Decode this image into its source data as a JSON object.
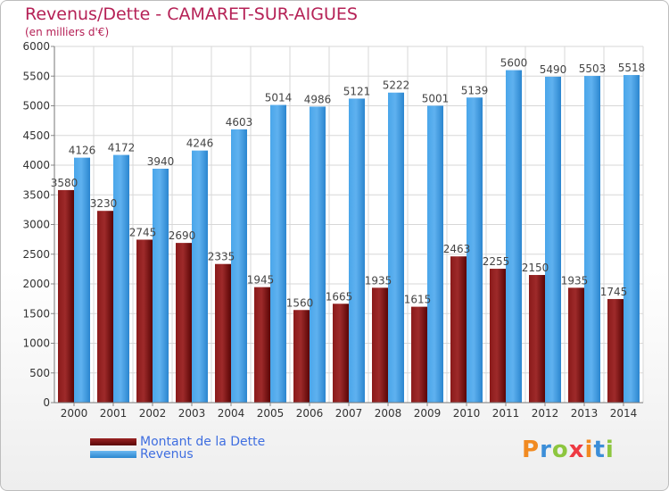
{
  "chart_data": {
    "type": "bar",
    "title": "Revenus/Dette - CAMARET-SUR-AIGUES",
    "subtitle": "(en milliers d'€)",
    "categories": [
      "2000",
      "2001",
      "2002",
      "2003",
      "2004",
      "2005",
      "2006",
      "2007",
      "2008",
      "2009",
      "2010",
      "2011",
      "2012",
      "2013",
      "2014"
    ],
    "series": [
      {
        "name": "Montant de la Dette",
        "color": "#7a1010",
        "labels": [
          "3580",
          "3230",
          "2745",
          "2690",
          "2335",
          "1945",
          "1560",
          "1665",
          "1935",
          "1615",
          "2463",
          "2255",
          "2150",
          "1935",
          "1745"
        ],
        "values": [
          3580,
          3230,
          2745,
          2690,
          2335,
          1945,
          1560,
          1665,
          1935,
          1615,
          2463,
          2255,
          2150,
          1935,
          1745
        ]
      },
      {
        "name": "Revenus",
        "color": "#3d9be3",
        "labels": [
          "4126",
          "4172",
          "3940",
          "4246",
          "4603",
          "5014",
          "4986",
          "5121",
          "5222",
          "5001",
          "5139",
          "5600",
          "5490",
          "5503",
          "5518"
        ],
        "values": [
          4126,
          4172,
          3940,
          4246,
          4603,
          5014,
          4986,
          5121,
          5222,
          5001,
          5139,
          5600,
          5490,
          5503,
          5518
        ]
      }
    ],
    "ylim": [
      0,
      6000
    ],
    "yticks": [
      0,
      500,
      1000,
      1500,
      2000,
      2500,
      3000,
      3500,
      4000,
      4500,
      5000,
      5500,
      6000
    ],
    "grid": true,
    "legend": "bottom-left"
  },
  "legend": {
    "debt_label": "Montant de la Dette",
    "revenue_label": "Revenus"
  },
  "brand": {
    "letters": [
      "P",
      "r",
      "o",
      "x",
      "i",
      "t",
      "i"
    ],
    "colors": [
      "#f18a21",
      "#3c8ed8",
      "#8dc63f",
      "#ee3a43",
      "#f18a21",
      "#3c8ed8",
      "#8dc63f"
    ]
  }
}
